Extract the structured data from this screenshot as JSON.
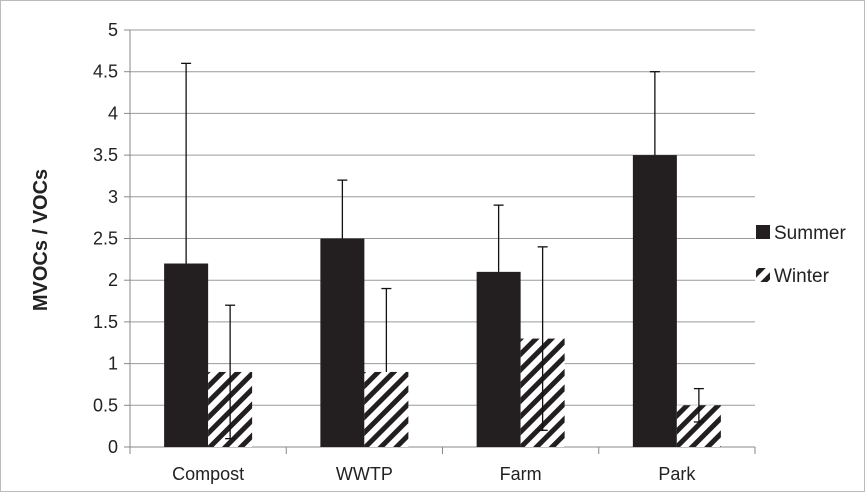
{
  "chart_data": {
    "type": "bar",
    "title": "",
    "xlabel": "",
    "ylabel": "MVOCs / VOCs",
    "ylim": [
      0,
      5
    ],
    "yticks": [
      0,
      0.5,
      1,
      1.5,
      2,
      2.5,
      3,
      3.5,
      4,
      4.5,
      5
    ],
    "ytick_labels": [
      "0",
      "0.5",
      "1",
      "1.5",
      "2",
      "2.5",
      "3",
      "3.5",
      "4",
      "4.5",
      "5"
    ],
    "grid": true,
    "legend_position": "right",
    "categories": [
      "Compost",
      "WWTP",
      "Farm",
      "Park"
    ],
    "series": [
      {
        "name": "Summer",
        "pattern": "solid",
        "color": "#231f20",
        "values": [
          2.2,
          2.5,
          2.1,
          3.5
        ],
        "error_upper": [
          2.4,
          0.7,
          0.8,
          1.0
        ],
        "error_lower": [
          0,
          0,
          0,
          0
        ]
      },
      {
        "name": "Winter",
        "pattern": "diagonal-hatch",
        "color": "#231f20",
        "values": [
          0.9,
          0.9,
          1.3,
          0.5
        ],
        "error_upper": [
          0.8,
          1.0,
          1.1,
          0.2
        ],
        "error_lower": [
          0.8,
          0,
          1.1,
          0.2
        ]
      }
    ]
  }
}
